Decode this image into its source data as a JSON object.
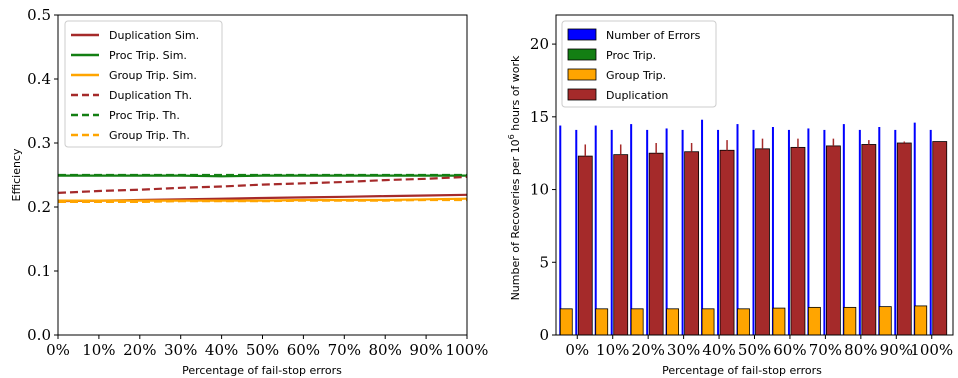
{
  "chart_data": [
    {
      "type": "line",
      "xlabel": "Percentage of fail-stop errors",
      "ylabel": "Efficiency",
      "xlim": [
        0,
        100
      ],
      "ylim": [
        0,
        0.5
      ],
      "x": [
        0,
        10,
        20,
        30,
        40,
        50,
        60,
        70,
        80,
        90,
        100
      ],
      "x_tick_labels": [
        "0%",
        "10%",
        "20%",
        "30%",
        "40%",
        "50%",
        "60%",
        "70%",
        "80%",
        "90%",
        "100%"
      ],
      "y_ticks": [
        0.0,
        0.1,
        0.2,
        0.3,
        0.4,
        0.5
      ],
      "y_tick_labels": [
        "0.0",
        "0.1",
        "0.2",
        "0.3",
        "0.4",
        "0.5"
      ],
      "legend_position": "top-left",
      "series": [
        {
          "name": "Duplication Sim.",
          "color": "#a52a2a",
          "style": "solid",
          "values": [
            0.209,
            0.21,
            0.211,
            0.212,
            0.213,
            0.214,
            0.215,
            0.216,
            0.217,
            0.218,
            0.219
          ]
        },
        {
          "name": "Proc Trip. Sim.",
          "color": "#137f13",
          "style": "solid",
          "values": [
            0.249,
            0.249,
            0.249,
            0.249,
            0.248,
            0.249,
            0.249,
            0.249,
            0.249,
            0.249,
            0.249
          ]
        },
        {
          "name": "Group Trip. Sim.",
          "color": "#ffa500",
          "style": "solid",
          "values": [
            0.21,
            0.21,
            0.21,
            0.21,
            0.21,
            0.21,
            0.211,
            0.211,
            0.211,
            0.212,
            0.213
          ]
        },
        {
          "name": "Duplication Th.",
          "color": "#a52a2a",
          "style": "dashed",
          "values": [
            0.222,
            0.225,
            0.227,
            0.23,
            0.232,
            0.235,
            0.237,
            0.239,
            0.242,
            0.244,
            0.247
          ]
        },
        {
          "name": "Proc Trip. Th.",
          "color": "#137f13",
          "style": "dashed",
          "values": [
            0.25,
            0.25,
            0.25,
            0.25,
            0.25,
            0.25,
            0.25,
            0.25,
            0.25,
            0.25,
            0.25
          ]
        },
        {
          "name": "Group Trip. Th.",
          "color": "#ffa500",
          "style": "dashed",
          "values": [
            0.208,
            0.208,
            0.208,
            0.209,
            0.209,
            0.209,
            0.21,
            0.21,
            0.21,
            0.211,
            0.211
          ]
        }
      ]
    },
    {
      "type": "bar",
      "xlabel": "Percentage of fail-stop errors",
      "ylabel": "Number of Recoveries per 10",
      "ylabel_sup": "6",
      "ylabel_suffix": " hours of work",
      "ylim": [
        0,
        22
      ],
      "y_ticks": [
        0,
        5,
        10,
        15,
        20
      ],
      "y_tick_labels": [
        "0",
        "5",
        "10",
        "15",
        "20"
      ],
      "categories": [
        "0%",
        "10%",
        "20%",
        "30%",
        "40%",
        "50%",
        "60%",
        "70%",
        "80%",
        "90%",
        "100%"
      ],
      "legend_position": "top-left",
      "series": [
        {
          "name": "Number of Errors",
          "color": "#0000ff",
          "kind": "thin-bars",
          "values_a": [
            14.4,
            14.4,
            14.5,
            14.2,
            14.8,
            14.5,
            14.3,
            14.2,
            14.5,
            14.3,
            14.6
          ],
          "values_b": [
            14.1,
            14.1,
            14.1,
            14.1,
            14.1,
            14.1,
            14.1,
            14.1,
            14.1,
            14.1,
            14.1
          ]
        },
        {
          "name": "Proc Trip.",
          "color": "#137f13",
          "values": [
            0,
            0,
            0,
            0,
            0,
            0,
            0,
            0,
            0,
            0,
            0
          ]
        },
        {
          "name": "Group Trip.",
          "color": "#ffa500",
          "values": [
            1.8,
            1.8,
            1.8,
            1.8,
            1.8,
            1.8,
            1.85,
            1.9,
            1.9,
            1.95,
            2.0
          ]
        },
        {
          "name": "Duplication",
          "color": "#a52a2a",
          "values": [
            12.3,
            12.4,
            12.5,
            12.6,
            12.7,
            12.8,
            12.9,
            13.0,
            13.1,
            13.2,
            13.3
          ],
          "errors": [
            0.8,
            0.7,
            0.7,
            0.6,
            0.7,
            0.7,
            0.6,
            0.5,
            0.3,
            0.1,
            0.0
          ]
        }
      ]
    }
  ]
}
